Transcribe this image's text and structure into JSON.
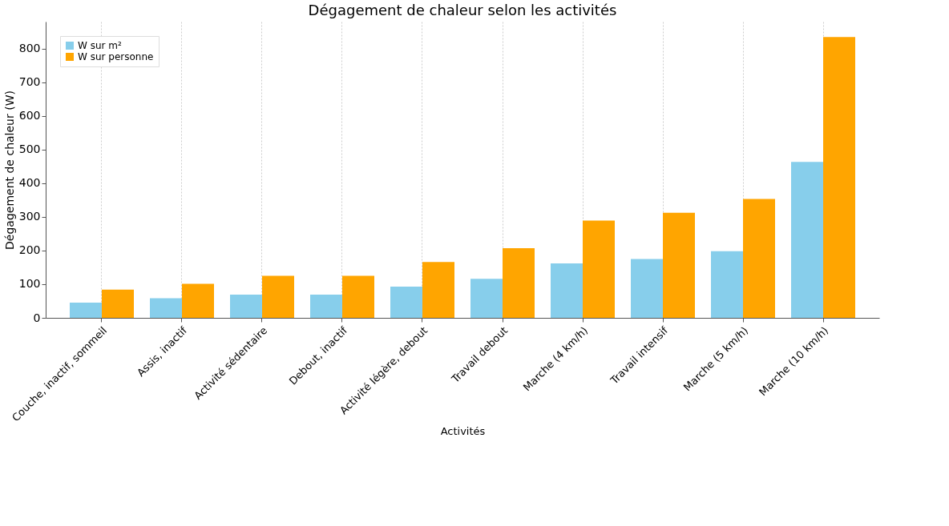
{
  "chart_data": {
    "type": "bar",
    "title": "Dégagement de chaleur selon les activités",
    "xlabel": "Activités",
    "ylabel": "Dégagement de chaleur (W)",
    "categories": [
      "Couche, inactif, sommeil",
      "Assis, inactif",
      "Activité sédentaire",
      "Debout, inactif",
      "Activité légère, debout",
      "Travail debout",
      "Marche (4 km/h)",
      "Travail intensif",
      "Marche (5 km/h)",
      "Marche (10 km/h)"
    ],
    "series": [
      {
        "name": "W sur m²",
        "color": "#87ceeb",
        "values": [
          45,
          58,
          69,
          69,
          93,
          116,
          162,
          175,
          198,
          463
        ]
      },
      {
        "name": "W sur personne",
        "color": "#ffa500",
        "values": [
          84,
          101,
          125,
          125,
          166,
          207,
          289,
          312,
          353,
          834
        ]
      }
    ],
    "ylim": [
      0,
      880
    ],
    "yticks": [
      0,
      100,
      200,
      300,
      400,
      500,
      600,
      700,
      800
    ],
    "grid": "x",
    "legend": "top left"
  }
}
